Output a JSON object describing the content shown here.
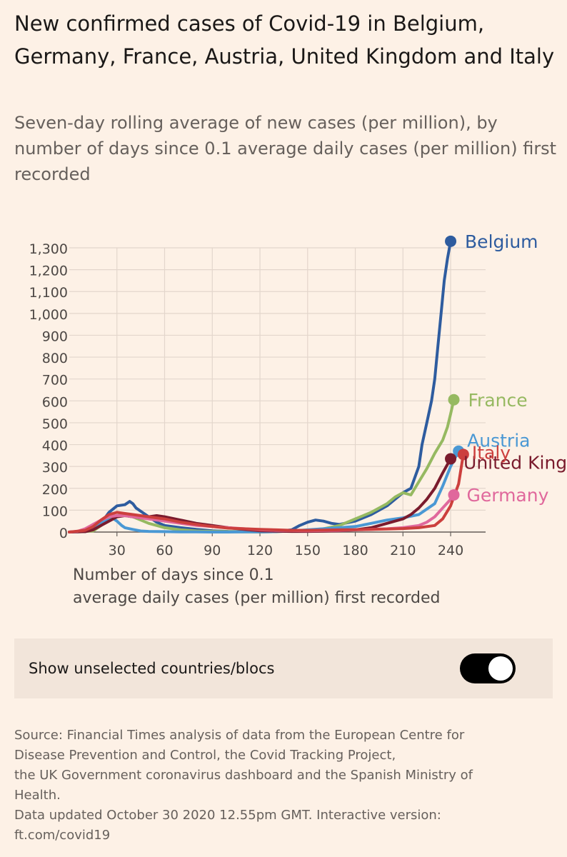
{
  "header": {
    "title": "New confirmed cases of Covid-19 in Belgium, Germany, France, Austria, United Kingdom and Italy",
    "subtitle": "Seven-day rolling average of new cases (per million), by number of days since 0.1 average daily cases (per million) first recorded"
  },
  "chart_data": {
    "type": "line",
    "title": "New confirmed cases of Covid-19 in Belgium, Germany, France, Austria, United Kingdom and Italy",
    "xlabel": "Number of days since 0.1 average daily cases (per million) first recorded",
    "xlabel_lines": [
      "Number of days since 0.1",
      "average daily cases (per million) first recorded"
    ],
    "ylabel": "",
    "xlim": [
      0,
      262
    ],
    "ylim": [
      0,
      1300
    ],
    "xticks": [
      30,
      60,
      90,
      120,
      150,
      180,
      210,
      240
    ],
    "xtick_labels": [
      "30",
      "60",
      "90",
      "120",
      "150",
      "180",
      "210",
      "240"
    ],
    "yticks": [
      0,
      100,
      200,
      300,
      400,
      500,
      600,
      700,
      800,
      900,
      1000,
      1100,
      1200,
      1300
    ],
    "ytick_labels": [
      "0",
      "100",
      "200",
      "300",
      "400",
      "500",
      "600",
      "700",
      "800",
      "900",
      "1,000",
      "1,100",
      "1,200",
      "1,300"
    ],
    "grid": true,
    "series": [
      {
        "name": "Belgium",
        "label": "Belgium",
        "color": "#2e5c9f",
        "x": [
          0,
          10,
          15,
          20,
          25,
          30,
          35,
          38,
          40,
          42,
          45,
          50,
          55,
          60,
          70,
          80,
          90,
          100,
          110,
          120,
          130,
          140,
          145,
          150,
          155,
          160,
          165,
          170,
          180,
          190,
          200,
          210,
          215,
          220,
          222,
          225,
          228,
          230,
          232,
          234,
          236,
          238,
          240
        ],
        "y": [
          0,
          2,
          10,
          40,
          90,
          120,
          125,
          140,
          130,
          110,
          95,
          70,
          45,
          30,
          20,
          12,
          6,
          3,
          2,
          1,
          2,
          10,
          30,
          45,
          55,
          50,
          40,
          35,
          50,
          80,
          120,
          180,
          200,
          300,
          400,
          500,
          600,
          700,
          850,
          1000,
          1150,
          1250,
          1330
        ]
      },
      {
        "name": "France",
        "label": "France",
        "color": "#96b961",
        "x": [
          0,
          15,
          20,
          25,
          30,
          35,
          40,
          45,
          50,
          55,
          60,
          70,
          80,
          90,
          100,
          110,
          120,
          130,
          140,
          150,
          160,
          170,
          180,
          190,
          200,
          205,
          210,
          215,
          220,
          225,
          230,
          235,
          238,
          240,
          242
        ],
        "y": [
          0,
          5,
          30,
          60,
          75,
          80,
          70,
          55,
          40,
          30,
          20,
          10,
          5,
          3,
          2,
          1,
          1,
          2,
          5,
          8,
          15,
          30,
          60,
          90,
          130,
          160,
          180,
          170,
          230,
          290,
          360,
          420,
          480,
          540,
          605
        ]
      },
      {
        "name": "Austria",
        "label": "Austria",
        "color": "#4a98d4",
        "x": [
          0,
          10,
          15,
          20,
          25,
          28,
          30,
          33,
          35,
          40,
          45,
          50,
          60,
          70,
          80,
          90,
          100,
          110,
          120,
          130,
          140,
          150,
          160,
          170,
          180,
          190,
          200,
          210,
          220,
          230,
          235,
          240,
          245
        ],
        "y": [
          0,
          3,
          20,
          45,
          55,
          60,
          50,
          30,
          20,
          12,
          5,
          3,
          2,
          1,
          1,
          0,
          0,
          1,
          1,
          2,
          5,
          10,
          15,
          20,
          25,
          40,
          55,
          65,
          80,
          130,
          210,
          300,
          370
        ]
      },
      {
        "name": "United Kingdom",
        "label": "United Kingdom",
        "color": "#7a1b2d",
        "x": [
          0,
          10,
          15,
          20,
          25,
          30,
          35,
          40,
          45,
          50,
          55,
          60,
          70,
          80,
          90,
          100,
          110,
          120,
          130,
          140,
          150,
          160,
          170,
          180,
          190,
          200,
          210,
          215,
          220,
          225,
          230,
          235,
          240
        ],
        "y": [
          0,
          2,
          10,
          30,
          50,
          70,
          75,
          70,
          65,
          70,
          75,
          70,
          55,
          40,
          30,
          20,
          12,
          6,
          4,
          3,
          3,
          4,
          6,
          10,
          20,
          40,
          60,
          80,
          110,
          150,
          200,
          270,
          335
        ]
      },
      {
        "name": "Germany",
        "label": "Germany",
        "color": "#e0689c",
        "x": [
          0,
          5,
          10,
          15,
          20,
          25,
          30,
          35,
          40,
          45,
          50,
          55,
          60,
          70,
          80,
          90,
          100,
          110,
          120,
          130,
          140,
          150,
          160,
          170,
          180,
          190,
          200,
          210,
          220,
          225,
          230,
          235,
          240,
          242
        ],
        "y": [
          0,
          3,
          15,
          35,
          55,
          70,
          75,
          75,
          70,
          65,
          60,
          55,
          50,
          40,
          30,
          25,
          20,
          15,
          10,
          8,
          7,
          6,
          7,
          8,
          10,
          12,
          15,
          20,
          30,
          45,
          70,
          110,
          150,
          170
        ]
      },
      {
        "name": "Italy",
        "label": "Italy",
        "color": "#cc3f3d",
        "x": [
          0,
          10,
          15,
          20,
          25,
          30,
          35,
          40,
          45,
          50,
          55,
          60,
          70,
          80,
          90,
          100,
          110,
          120,
          130,
          140,
          150,
          160,
          170,
          180,
          190,
          200,
          210,
          220,
          230,
          235,
          240,
          245,
          248
        ],
        "y": [
          0,
          8,
          25,
          55,
          80,
          90,
          85,
          80,
          75,
          70,
          65,
          60,
          45,
          35,
          25,
          18,
          15,
          12,
          10,
          8,
          8,
          9,
          10,
          11,
          12,
          14,
          16,
          20,
          30,
          60,
          120,
          220,
          355
        ]
      }
    ]
  },
  "controls": {
    "toggle_label": "Show unselected countries/blocs",
    "toggle_state": "on"
  },
  "footer": {
    "source_lines": [
      "Source: Financial Times analysis of data from the European Centre for",
      "Disease Prevention and Control, the Covid Tracking Project,",
      "the UK Government coronavirus dashboard and the Spanish Ministry of",
      "Health.",
      "Data updated October 30 2020 12.55pm GMT. Interactive version:",
      "ft.com/covid19"
    ]
  }
}
